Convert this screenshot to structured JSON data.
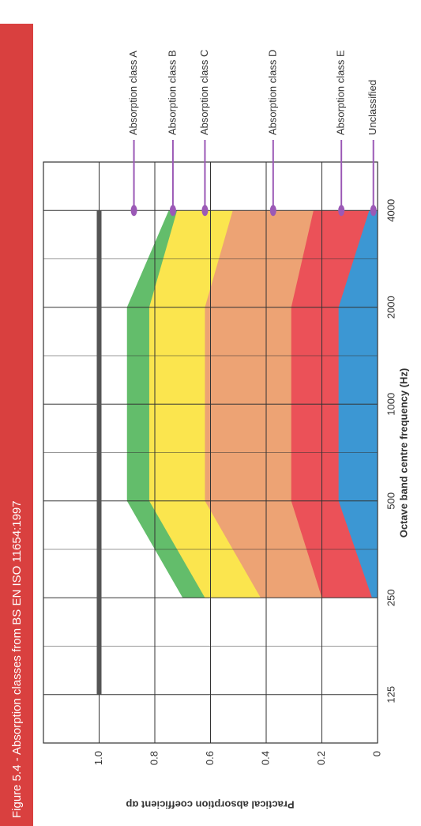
{
  "chart_data": {
    "type": "area",
    "title": "Figure 5.4 - Absorption classes from BS EN ISO 11654:1997",
    "x_label": "Octave band centre frequency (Hz)",
    "y_label": "Practical absorption coefficient αp",
    "categories": [
      "125",
      "250",
      "500",
      "1000",
      "2000",
      "4000"
    ],
    "ylim": [
      0,
      1.2
    ],
    "yticks": [
      0,
      0.2,
      0.4,
      0.6,
      0.8,
      {
        "value": 1,
        "label": "1.0"
      }
    ],
    "grid": true,
    "series": [
      {
        "name": "Absorption class A",
        "color": "#555555",
        "style": "line",
        "values": [
          1,
          1,
          1,
          1,
          1,
          1
        ]
      },
      {
        "name": "Absorption class B",
        "color": "#63bd6b",
        "values": [
          null,
          0.7,
          0.9,
          0.9,
          0.9,
          0.75
        ]
      },
      {
        "name": "Absorption class C",
        "color": "#fbe54e",
        "values": [
          null,
          0.62,
          0.82,
          0.82,
          0.82,
          0.72
        ]
      },
      {
        "name": "Absorption class D",
        "color": "#eda374",
        "values": [
          null,
          0.42,
          0.62,
          0.62,
          0.62,
          0.52
        ]
      },
      {
        "name": "Absorption class E",
        "color": "#eb5158",
        "values": [
          null,
          0.2,
          0.31,
          0.31,
          0.31,
          0.23
        ]
      },
      {
        "name": "Unclassified",
        "color": "#3c97d3",
        "values": [
          null,
          0.02,
          0.14,
          0.14,
          0.14,
          0.03
        ]
      }
    ]
  }
}
